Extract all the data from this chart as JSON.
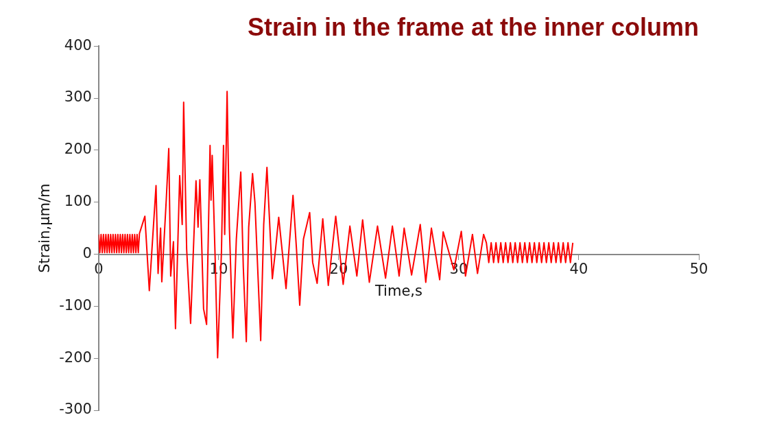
{
  "chart_data": {
    "type": "line",
    "title": "Strain in the frame at the inner column",
    "xlabel": "Time,s",
    "ylabel": "Strain,µm/m",
    "xlim": [
      0,
      50
    ],
    "xticks": [
      0,
      10,
      20,
      30,
      40,
      50
    ],
    "ylim": [
      -300,
      400
    ],
    "yticks": [
      -300,
      -200,
      -100,
      0,
      100,
      200,
      300,
      400
    ],
    "grid": false,
    "legend": false,
    "marker": "none",
    "line_style": "solid",
    "series": [
      {
        "color": "#ff0000",
        "x": [
          0,
          0.1,
          0.2,
          0.3,
          0.4,
          0.5,
          0.6,
          0.7,
          0.8,
          0.9,
          1.0,
          1.1,
          1.2,
          1.3,
          1.4,
          1.5,
          1.6,
          1.7,
          1.8,
          1.9,
          2.0,
          2.1,
          2.2,
          2.3,
          2.4,
          2.5,
          2.6,
          2.7,
          2.8,
          2.9,
          3.0,
          3.1,
          3.2,
          3.3,
          3.4,
          3.85,
          4.22,
          4.78,
          4.95,
          5.16,
          5.26,
          5.63,
          5.84,
          6.0,
          6.23,
          6.4,
          6.75,
          6.96,
          7.08,
          7.33,
          7.66,
          8.11,
          8.28,
          8.43,
          8.74,
          8.99,
          9.28,
          9.36,
          9.46,
          9.71,
          9.91,
          10.23,
          10.4,
          10.5,
          10.7,
          10.89,
          11.18,
          11.47,
          11.84,
          12.05,
          12.3,
          12.5,
          12.82,
          13.02,
          13.5,
          13.75,
          14.02,
          14.47,
          14.74,
          15.0,
          15.61,
          16.19,
          16.48,
          16.75,
          17.06,
          17.58,
          17.83,
          18.2,
          18.67,
          19.13,
          19.75,
          20.37,
          20.93,
          21.51,
          21.99,
          22.55,
          23.23,
          23.9,
          24.47,
          25.03,
          25.45,
          26.07,
          26.79,
          27.25,
          27.72,
          28.41,
          28.7,
          29.59,
          30.21,
          30.56,
          31.14,
          31.56,
          32.07,
          32.3,
          32.5,
          32.7,
          32.9,
          33.1,
          33.3,
          33.5,
          33.7,
          33.9,
          34.1,
          34.3,
          34.5,
          34.7,
          34.9,
          35.1,
          35.3,
          35.5,
          35.7,
          35.9,
          36.1,
          36.3,
          36.5,
          36.7,
          36.9,
          37.1,
          37.3,
          37.5,
          37.7,
          37.9,
          38.1,
          38.3,
          38.5,
          38.7,
          38.9,
          39.1,
          39.3,
          39.5
        ],
        "values": [
          38,
          3,
          38,
          3,
          38,
          3,
          38,
          3,
          38,
          3,
          38,
          3,
          38,
          3,
          38,
          3,
          38,
          3,
          38,
          3,
          38,
          3,
          38,
          3,
          38,
          3,
          38,
          3,
          38,
          3,
          38,
          3,
          38,
          3,
          40,
          73,
          -70,
          132,
          -37,
          50,
          -53,
          104,
          203,
          -42,
          24,
          -143,
          151,
          57,
          292,
          10,
          -133,
          141,
          52,
          143,
          -105,
          -135,
          209,
          104,
          190,
          -12,
          -199,
          5,
          209,
          38,
          313,
          52,
          -161,
          29,
          158,
          -25,
          -168,
          52,
          155,
          99,
          -166,
          57,
          167,
          -47,
          10,
          71,
          -66,
          113,
          10,
          -98,
          29,
          80,
          -16,
          -56,
          68,
          -60,
          73,
          -58,
          54,
          -42,
          66,
          -54,
          54,
          -46,
          54,
          -42,
          50,
          -40,
          57,
          -54,
          50,
          -49,
          43,
          -30,
          44,
          -42,
          38,
          -37,
          38,
          22,
          -16,
          22,
          -16,
          22,
          -16,
          22,
          -16,
          22,
          -16,
          22,
          -16,
          22,
          -16,
          22,
          -16,
          22,
          -16,
          22,
          -16,
          22,
          -16,
          22,
          -16,
          22,
          -16,
          22,
          -16,
          22,
          -16,
          22,
          -16,
          22,
          -16,
          22,
          -16,
          22
        ]
      }
    ]
  }
}
